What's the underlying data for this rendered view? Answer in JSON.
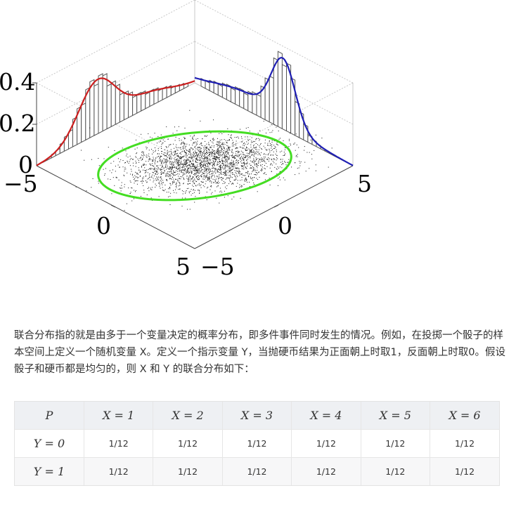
{
  "figure": {
    "axis_ticks": {
      "z": [
        "0.4",
        "0.2",
        "0"
      ],
      "left_axis": [
        "−5",
        "0",
        "5"
      ],
      "right_axis": [
        "−5",
        "0",
        "5"
      ]
    },
    "colors": {
      "left_marginal": "#cc1f1f",
      "right_marginal": "#1f1fb4",
      "ellipse": "#44dd22",
      "scatter": "#111111",
      "histogram": "#555555",
      "box": "#c8c8c8"
    }
  },
  "paragraph": "联合分布指的就是由多于一个变量决定的概率分布，即多件事件同时发生的情况。例如，在投掷一个骰子的样本空间上定义一个随机变量 X。定义一个指示变量 Y，当抛硬币结果为正面朝上时取1，反面朝上时取0。假设骰子和硬币都是均匀的，则 X 和 Y 的联合分布如下：",
  "table": {
    "header": [
      "P",
      "X = 1",
      "X = 2",
      "X = 3",
      "X = 4",
      "X = 5",
      "X = 6"
    ],
    "rows": [
      {
        "label": "Y = 0",
        "cells": [
          "1/12",
          "1/12",
          "1/12",
          "1/12",
          "1/12",
          "1/12"
        ]
      },
      {
        "label": "Y = 1",
        "cells": [
          "1/12",
          "1/12",
          "1/12",
          "1/12",
          "1/12",
          "1/12"
        ]
      }
    ]
  }
}
